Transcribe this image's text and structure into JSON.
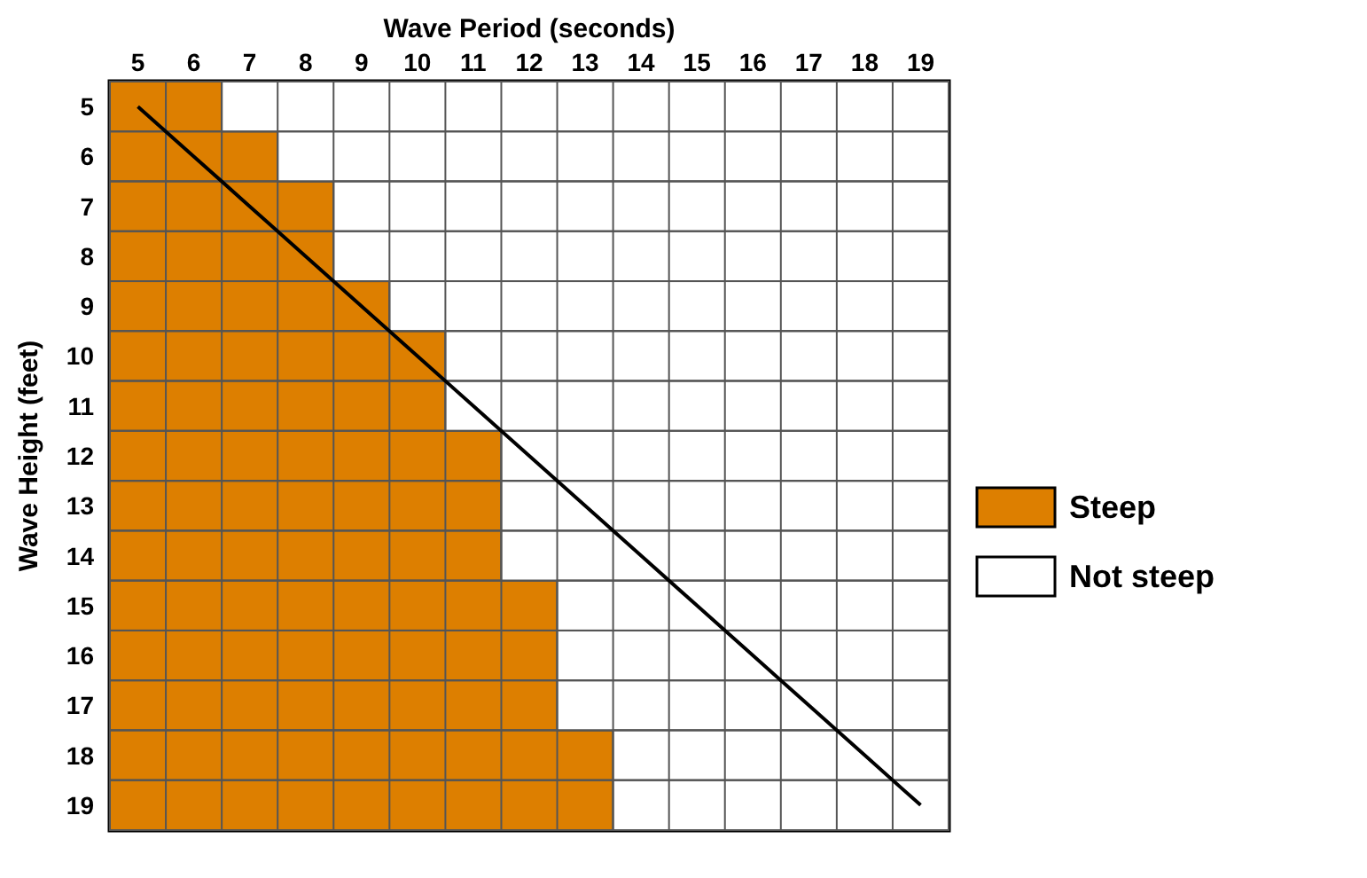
{
  "chart_data": {
    "type": "bar",
    "orientation": "horizontal",
    "stacked": true,
    "xlabel": "Wave Period (seconds)",
    "ylabel": "Wave Height (feet)",
    "categories": [
      "5",
      "6",
      "7",
      "8",
      "9",
      "10",
      "11",
      "12",
      "13",
      "14",
      "15",
      "16",
      "17",
      "18",
      "19"
    ],
    "xlim": [
      4.5,
      19.5
    ],
    "xticks": [
      5,
      6,
      7,
      8,
      9,
      10,
      11,
      12,
      13,
      14,
      15,
      16,
      17,
      18,
      19
    ],
    "series": [
      {
        "name": "Steep",
        "color": "#dd7f00",
        "values": [
          6.5,
          7.5,
          8.5,
          8.5,
          9.5,
          10.5,
          10.5,
          11.5,
          11.5,
          11.5,
          12.5,
          12.5,
          12.5,
          13.5,
          13.5
        ]
      },
      {
        "name": "Not steep",
        "color": "#ffffff",
        "values": [
          13,
          12,
          11,
          11,
          10,
          9,
          9,
          8,
          8,
          8,
          7,
          7,
          7,
          6,
          6
        ]
      },
      {
        "type": "line",
        "color": "#000000",
        "values": [
          5,
          6,
          7,
          8,
          9,
          10,
          11,
          12,
          13,
          14,
          15,
          16,
          17,
          18,
          19
        ]
      }
    ],
    "grid": true,
    "legend": "right"
  }
}
